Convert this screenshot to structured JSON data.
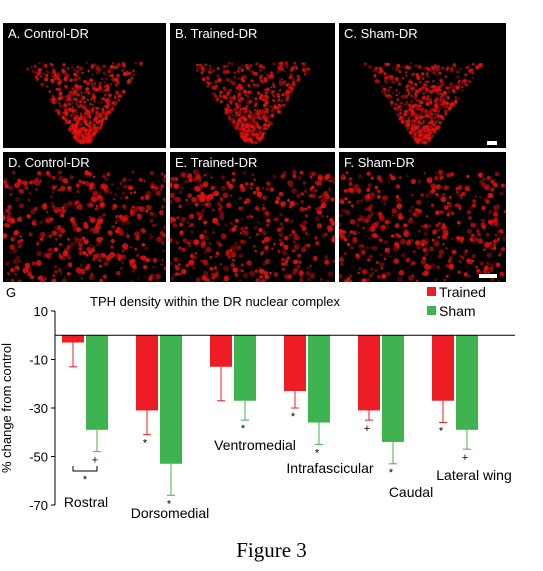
{
  "panels": [
    {
      "label": "A. Control-DR"
    },
    {
      "label": "B. Trained-DR"
    },
    {
      "label": "C. Sham-DR"
    },
    {
      "label": "D. Control-DR"
    },
    {
      "label": "E. Trained-DR"
    },
    {
      "label": "F. Sham-DR"
    }
  ],
  "panel_label_g": "G",
  "colors": {
    "trained": "#ee1c24",
    "sham": "#3fb34f",
    "stain": "#e01010"
  },
  "chart_data": {
    "type": "bar",
    "title": "TPH density within the DR nuclear complex",
    "ylabel": "% change from control",
    "ylim": [
      -70,
      10
    ],
    "yticks": [
      10,
      -10,
      -30,
      -50,
      -70
    ],
    "categories": [
      "Rostral",
      "Dorsomedial",
      "Ventromedial",
      "Intrafascicular",
      "Caudal",
      "Lateral wing"
    ],
    "series": [
      {
        "name": "Trained",
        "values": [
          -3,
          -31,
          -13,
          -23,
          -31,
          -27
        ],
        "errors": [
          10,
          10,
          14,
          7,
          4,
          9
        ],
        "markers": [
          "",
          "*",
          "",
          "*",
          "+",
          "*"
        ]
      },
      {
        "name": "Sham",
        "values": [
          -39,
          -53,
          -27,
          -36,
          -44,
          -39
        ],
        "errors": [
          9,
          13,
          8,
          9,
          9,
          8
        ],
        "markers": [
          "+",
          "*",
          "*",
          "*",
          "*",
          "+"
        ]
      }
    ],
    "bracket_marker": "*",
    "legend_position": "top-right"
  },
  "caption": "Figure 3"
}
